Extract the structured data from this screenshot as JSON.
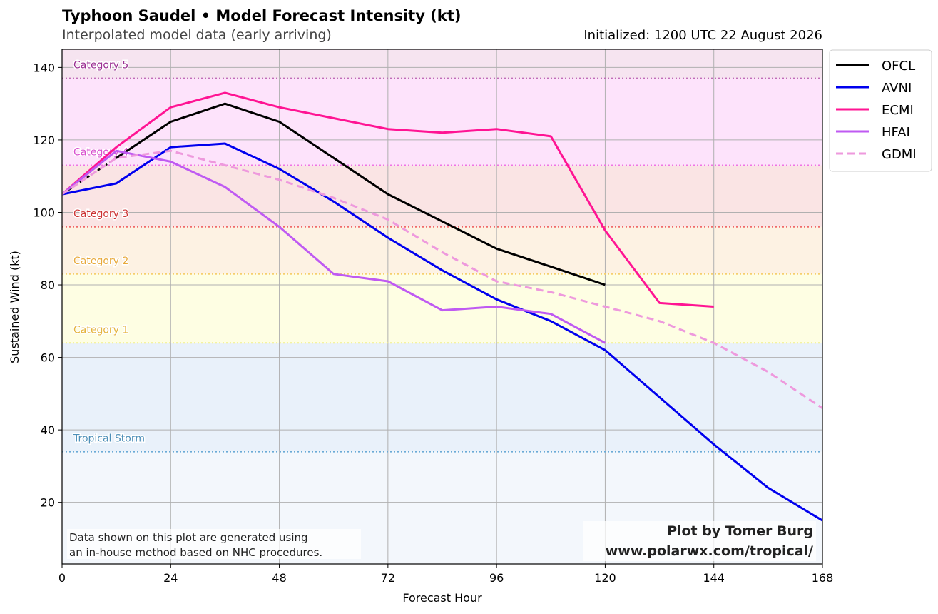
{
  "header": {
    "title": "Typhoon Saudel • Model Forecast Intensity (kt)",
    "subtitle": "Interpolated model data (early arriving)",
    "initialized": "Initialized: 1200 UTC 22 August 2026"
  },
  "footer": {
    "note_line1": "Data shown on this plot are generated using",
    "note_line2": "an in-house method based on NHC procedures.",
    "credit_line1": "Plot by Tomer Burg",
    "credit_line2": "www.polarwx.com/tropical/"
  },
  "chart_data": {
    "type": "line",
    "xlabel": "Forecast Hour",
    "ylabel": "Sustained Wind (kt)",
    "xlim": [
      0,
      168
    ],
    "ylim": [
      3,
      145
    ],
    "xticks": [
      0,
      24,
      48,
      72,
      96,
      120,
      144,
      168
    ],
    "yticks": [
      20,
      40,
      60,
      80,
      100,
      120,
      140
    ],
    "grid": true,
    "legend_position": "outside-right-top",
    "category_bands": [
      {
        "name": "Tropical Storm",
        "from": 34,
        "to": 64,
        "fill": "#e9f1fa",
        "line": "#6aaad6",
        "label_color": "#4d8fb8"
      },
      {
        "name": "Category 1",
        "from": 64,
        "to": 83,
        "fill": "#fefee3",
        "line": "#f1ef8a",
        "label_color": "#e4b43c"
      },
      {
        "name": "Category 2",
        "from": 83,
        "to": 96,
        "fill": "#fdf2e3",
        "line": "#f5cf6d",
        "label_color": "#e8a93a"
      },
      {
        "name": "Category 3",
        "from": 96,
        "to": 113,
        "fill": "#fae4e4",
        "line": "#f06a6a",
        "label_color": "#cc3333"
      },
      {
        "name": "Category 4",
        "from": 113,
        "to": 137,
        "fill": "#fde3fb",
        "line": "#ef74e4",
        "label_color": "#d94fcf"
      },
      {
        "name": "Category 5",
        "from": 137,
        "to": 145,
        "fill": "#f6e4f0",
        "line": "#c06cb8",
        "label_color": "#9b3093"
      }
    ],
    "below_ts_fill": "#f3f7fc",
    "series": [
      {
        "name": "OFCL",
        "color": "#000000",
        "dash": "solid",
        "x": [
          12,
          24,
          36,
          48,
          60,
          72,
          84,
          96,
          108,
          120
        ],
        "y": [
          115,
          125,
          130,
          125,
          115,
          105,
          97.5,
          90,
          85,
          80
        ],
        "lead_in": {
          "x": [
            0,
            12
          ],
          "y": [
            105,
            115
          ]
        }
      },
      {
        "name": "AVNI",
        "color": "#0000ee",
        "dash": "solid",
        "x": [
          0,
          12,
          24,
          36,
          48,
          60,
          72,
          84,
          96,
          108,
          120,
          132,
          144,
          156,
          168
        ],
        "y": [
          105,
          108,
          118,
          119,
          112,
          103,
          93,
          84,
          76,
          70,
          62,
          49,
          36,
          24,
          15
        ]
      },
      {
        "name": "ECMI",
        "color": "#ff1493",
        "dash": "solid",
        "x": [
          0,
          12,
          24,
          36,
          48,
          60,
          72,
          84,
          96,
          108,
          120,
          132,
          144
        ],
        "y": [
          105,
          118,
          129,
          133,
          129,
          126,
          123,
          122,
          123,
          121,
          95,
          75,
          74
        ]
      },
      {
        "name": "HFAI",
        "color": "#bf5af2",
        "dash": "solid",
        "x": [
          0,
          12,
          24,
          36,
          48,
          60,
          72,
          84,
          96,
          108,
          120
        ],
        "y": [
          105,
          117,
          114,
          107,
          96,
          83,
          81,
          73,
          74,
          72,
          64
        ]
      },
      {
        "name": "GDMI",
        "color": "#ee99dd",
        "dash": "dashed",
        "x": [
          0,
          12,
          24,
          36,
          48,
          60,
          72,
          84,
          96,
          108,
          120,
          132,
          144,
          156,
          168
        ],
        "y": [
          105,
          115,
          117,
          113,
          109,
          104,
          98,
          89,
          81,
          78,
          74,
          70,
          64,
          56,
          46
        ]
      }
    ]
  }
}
